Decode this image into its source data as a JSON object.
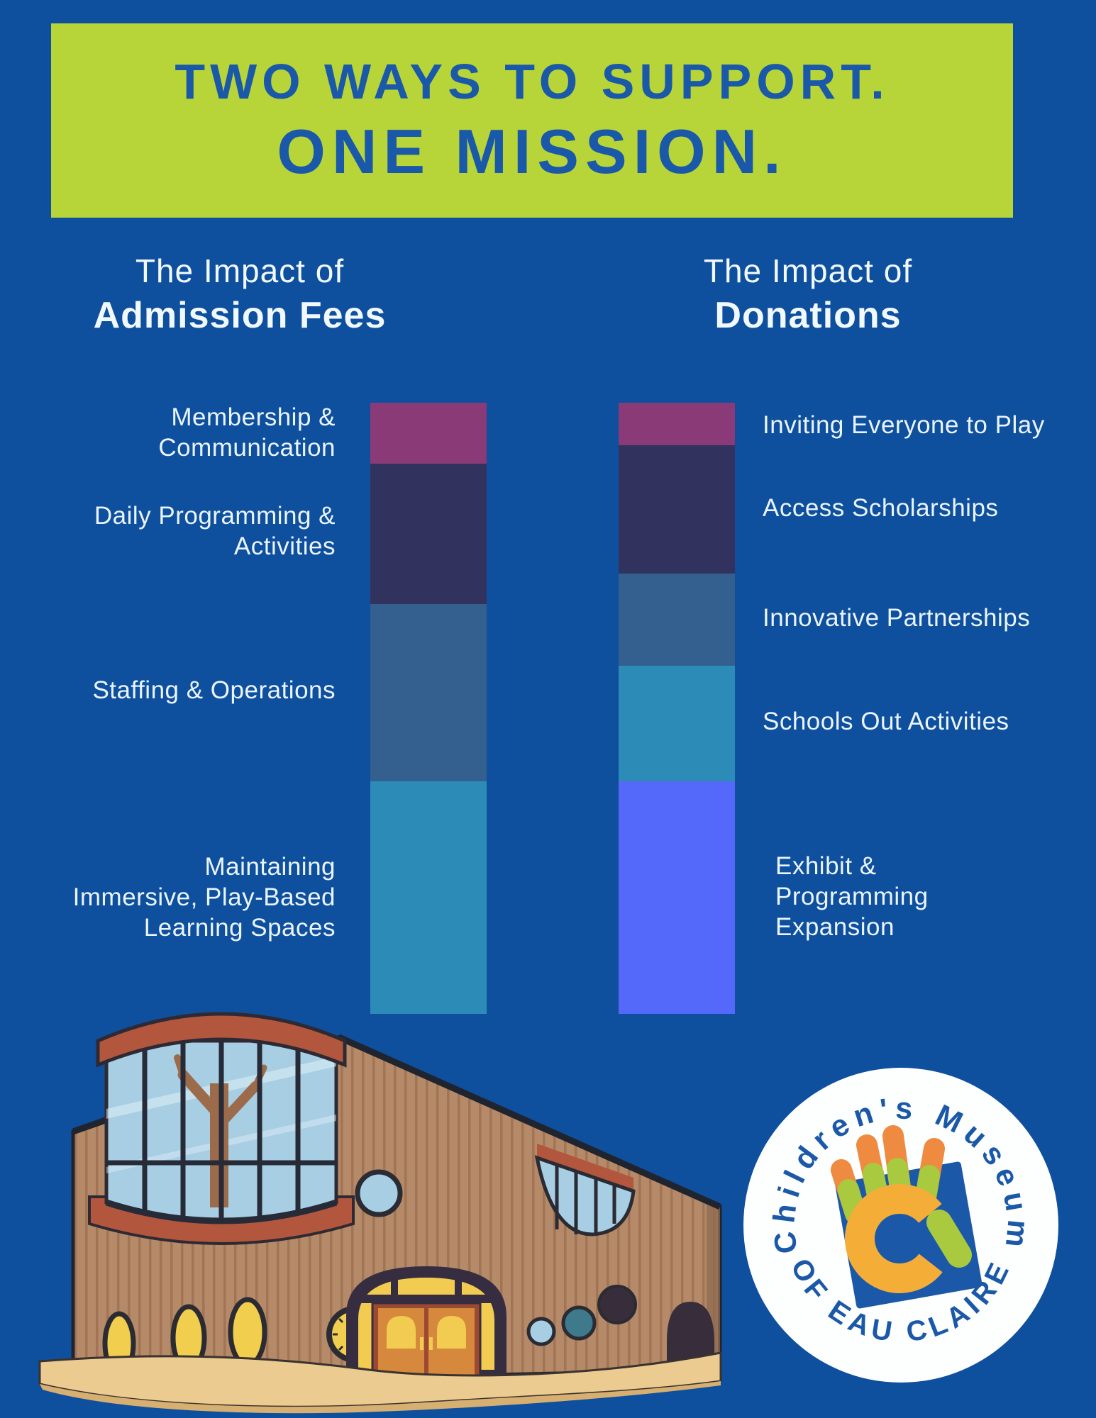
{
  "banner": {
    "line1": "TWO WAYS TO SUPPORT.",
    "line2": "ONE MISSION.",
    "bg_color": "#B7D438",
    "text_color": "#1A58A9"
  },
  "columns": {
    "left": {
      "title_line1": "The Impact of",
      "title_line2": "Admission Fees"
    },
    "right": {
      "title_line1": "The Impact of",
      "title_line2": "Donations"
    }
  },
  "chart_data": {
    "type": "bar",
    "subtype": "stacked-vertical",
    "unit": "percent of bar height (estimated from pixels)",
    "legend_position": "labels beside segments",
    "grid": false,
    "bars": [
      {
        "name": "Admission Fees",
        "segments": [
          {
            "label": "Membership & Communication",
            "value": 10,
            "color": "#8A3A76"
          },
          {
            "label": "Daily Programming & Activities",
            "value": 23,
            "color": "#32325F"
          },
          {
            "label": "Staffing & Operations",
            "value": 29,
            "color": "#33608E"
          },
          {
            "label": "Maintaining Immersive, Play-Based Learning Spaces",
            "value": 38,
            "color": "#2D8CB7"
          }
        ]
      },
      {
        "name": "Donations",
        "segments": [
          {
            "label": "Inviting Everyone to Play",
            "value": 7,
            "color": "#8A3A76"
          },
          {
            "label": "Access Scholarships",
            "value": 21,
            "color": "#32325F"
          },
          {
            "label": "Innovative Partnerships",
            "value": 15,
            "color": "#33608E"
          },
          {
            "label": "Schools Out Activities",
            "value": 19,
            "color": "#2D8CB7"
          },
          {
            "label": "Exhibit & Programming Expansion",
            "value": 38,
            "color": "#5468FA"
          }
        ]
      }
    ]
  },
  "bar_labels": {
    "left": [
      {
        "lines": [
          "Membership &",
          "Communication"
        ]
      },
      {
        "lines": [
          "Daily Programming &",
          "Activities"
        ]
      },
      {
        "lines": [
          "Staffing & Operations"
        ]
      },
      {
        "lines": [
          "Maintaining",
          "Immersive, Play-Based",
          "Learning Spaces"
        ]
      }
    ],
    "right": [
      {
        "lines": [
          "Inviting Everyone to Play"
        ]
      },
      {
        "lines": [
          "Access Scholarships"
        ]
      },
      {
        "lines": [
          "Innovative Partnerships"
        ]
      },
      {
        "lines": [
          "Schools Out Activities"
        ]
      },
      {
        "lines": [
          "Exhibit &",
          "Programming",
          "Expansion"
        ]
      }
    ]
  },
  "logo": {
    "top_text": "Children's Museum",
    "bottom_text": "OF EAU CLAIRE",
    "text_color": "#1B59A8",
    "badge_color": "#FFFFFF",
    "accent_orange": "#EF8A41",
    "accent_green": "#A9C93F",
    "accent_yellow": "#F4AE38"
  },
  "illustration": {
    "description": "children's museum building with curved glass atrium, arched entrance, round windows and clock"
  },
  "palette": {
    "background": "#0E4F9E",
    "white_text": "#EAF4FB"
  }
}
